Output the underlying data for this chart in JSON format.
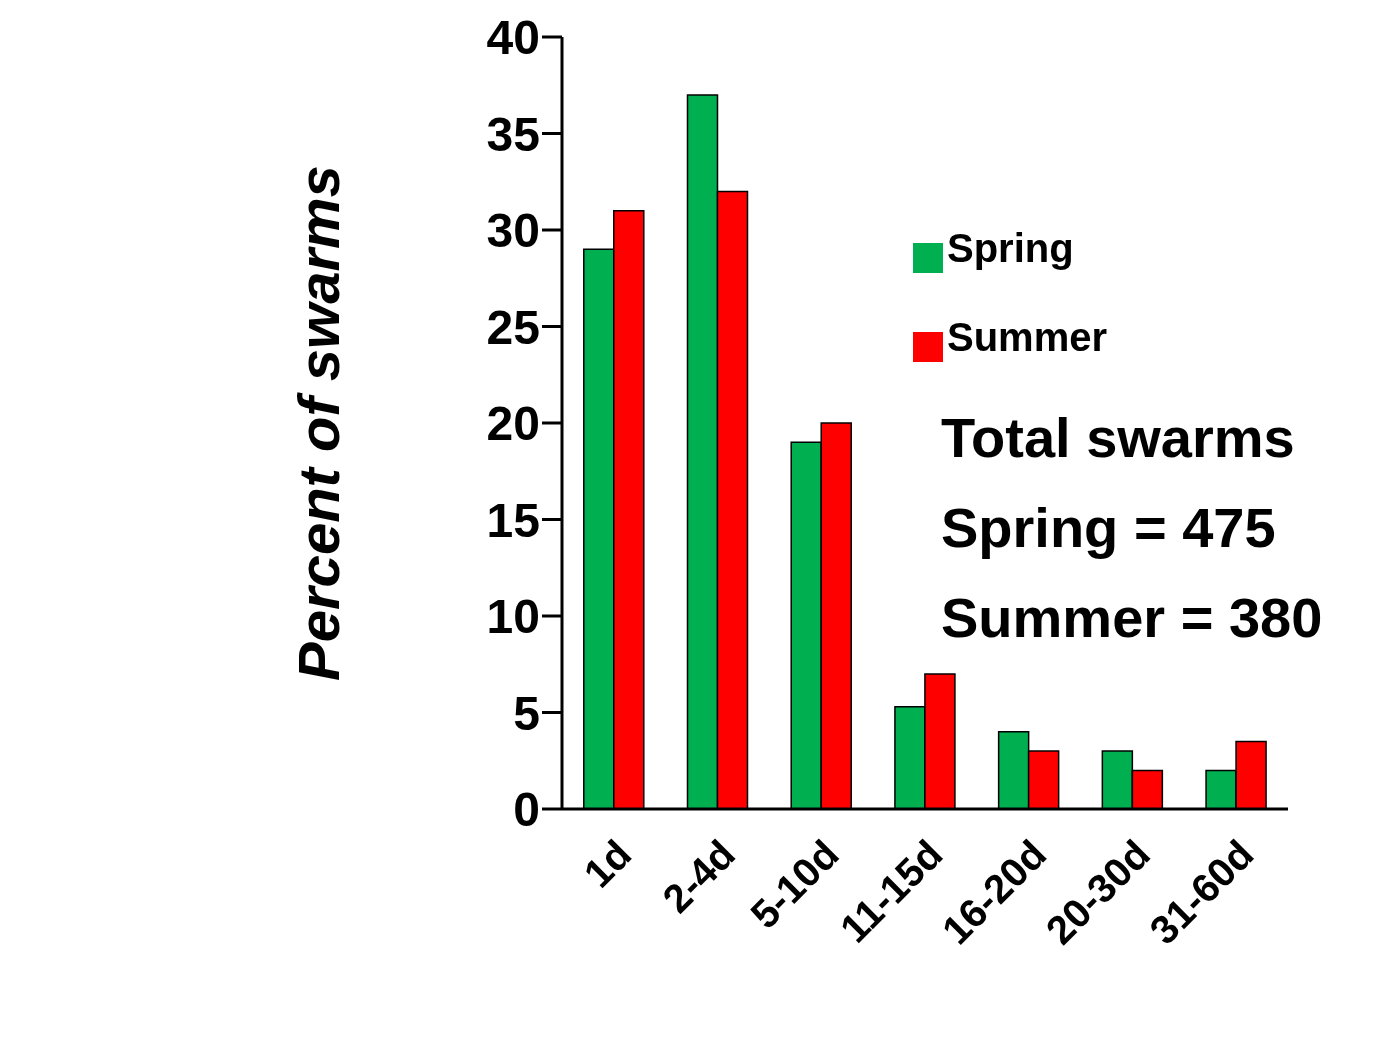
{
  "chart_data": {
    "type": "bar",
    "ylabel": "Percent of swarms",
    "categories": [
      "1d",
      "2-4d",
      "5-10d",
      "11-15d",
      "16-20d",
      "20-30d",
      "31-60d"
    ],
    "series": [
      {
        "name": "Spring",
        "color": "#00b050",
        "values": [
          29,
          37,
          19,
          5.3,
          4,
          3,
          2
        ]
      },
      {
        "name": "Summer",
        "color": "#ff0000",
        "values": [
          31,
          32,
          20,
          7,
          3,
          2,
          3.5
        ]
      }
    ],
    "ylim": [
      0,
      40
    ],
    "yticks": [
      0,
      5,
      10,
      15,
      20,
      25,
      30,
      35,
      40
    ],
    "grid": false,
    "legend": "top right",
    "annotations": [
      "Total swarms",
      "Spring = 475",
      "Summer = 380"
    ]
  }
}
